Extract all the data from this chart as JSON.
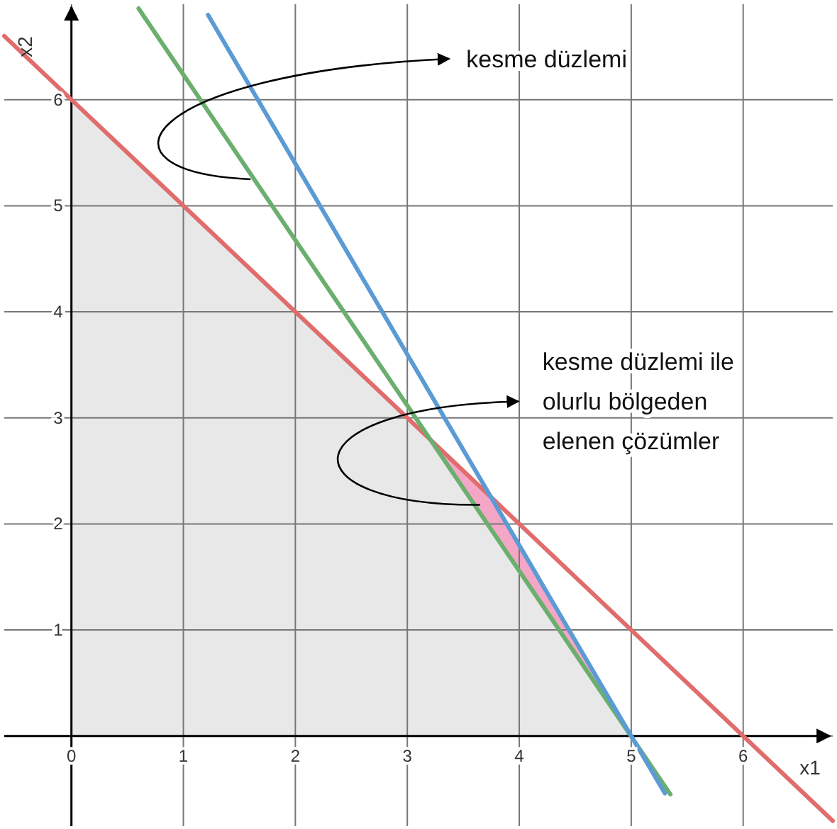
{
  "chart_data": {
    "type": "line",
    "xlabel": "x1",
    "ylabel": "x2",
    "xlim": [
      -0.6,
      6.8
    ],
    "ylim": [
      -0.85,
      6.9
    ],
    "xticks": [
      0,
      1,
      2,
      3,
      4,
      5,
      6
    ],
    "yticks": [
      {
        "value": 0,
        "label": null
      },
      1,
      2,
      3,
      4,
      5,
      6
    ],
    "grid": true,
    "series": [
      {
        "type": "area",
        "color": "#f4a6c6",
        "x": [
          3.21,
          3.75,
          5
        ],
        "values": [
          2.79,
          2.25,
          0
        ]
      },
      {
        "type": "area",
        "color": "#e8e8e8",
        "x": [
          0,
          3.21,
          5
        ],
        "values": [
          6,
          2.79,
          0
        ]
      },
      {
        "color": "#e06c6c",
        "x": [
          -0.6,
          6.8
        ],
        "values": [
          6.6,
          -0.8
        ]
      },
      {
        "color": "#6aaf6e",
        "x": [
          0.6,
          5.35
        ],
        "values": [
          6.86,
          -0.55
        ]
      },
      {
        "color": "#5b9bd5",
        "x": [
          1.22,
          5.3
        ],
        "values": [
          6.8,
          -0.54
        ]
      }
    ],
    "annotations": [
      {
        "text": "kesme düzlemi",
        "x": 1.6,
        "y": 5.25
      },
      {
        "text": "kesme düzlemi ile\nolurlu bölgeden\nelenen çözümler",
        "x": 3.65,
        "y": 2.18
      }
    ]
  }
}
